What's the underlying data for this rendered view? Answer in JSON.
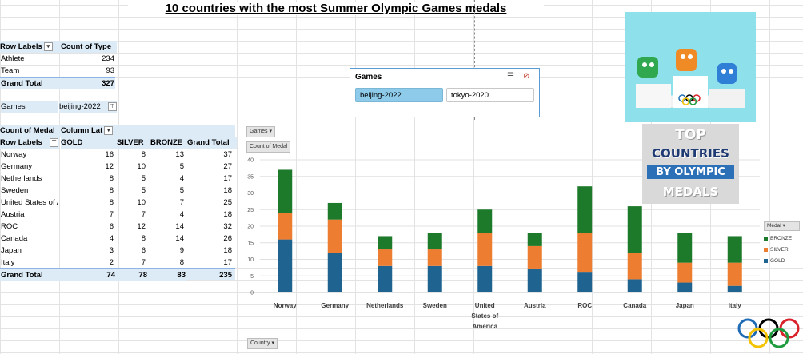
{
  "title": "10 countries with the most Summer Olympic Games medals",
  "pivot1": {
    "headers": [
      "Row Labels",
      "Count of Type"
    ],
    "rows": [
      {
        "label": "Athlete",
        "value": "234"
      },
      {
        "label": "Team",
        "value": "93"
      }
    ],
    "total": {
      "label": "Grand Total",
      "value": "327"
    }
  },
  "filter": {
    "label": "Games",
    "value": "beijing-2022"
  },
  "pivot2": {
    "corner": "Count of Medal",
    "column_labels": "Column Lat",
    "row_labels": "Row Labels",
    "columns": [
      "GOLD",
      "SILVER",
      "BRONZE",
      "Grand Total"
    ],
    "rows": [
      {
        "country": "Norway",
        "gold": "16",
        "silver": "8",
        "bronze": "13",
        "total": "37"
      },
      {
        "country": "Germany",
        "gold": "12",
        "silver": "10",
        "bronze": "5",
        "total": "27"
      },
      {
        "country": "Netherlands",
        "gold": "8",
        "silver": "5",
        "bronze": "4",
        "total": "17"
      },
      {
        "country": "Sweden",
        "gold": "8",
        "silver": "5",
        "bronze": "5",
        "total": "18"
      },
      {
        "country": "United States of A",
        "gold": "8",
        "silver": "10",
        "bronze": "7",
        "total": "25"
      },
      {
        "country": "Austria",
        "gold": "7",
        "silver": "7",
        "bronze": "4",
        "total": "18"
      },
      {
        "country": "ROC",
        "gold": "6",
        "silver": "12",
        "bronze": "14",
        "total": "32"
      },
      {
        "country": "Canada",
        "gold": "4",
        "silver": "8",
        "bronze": "14",
        "total": "26"
      },
      {
        "country": "Japan",
        "gold": "3",
        "silver": "6",
        "bronze": "9",
        "total": "18"
      },
      {
        "country": "Italy",
        "gold": "2",
        "silver": "7",
        "bronze": "8",
        "total": "17"
      }
    ],
    "total": {
      "label": "Grand Total",
      "gold": "74",
      "silver": "78",
      "bronze": "83",
      "total": "235"
    }
  },
  "slicer": {
    "title": "Games",
    "options": [
      "beijing-2022",
      "tokyo-2020"
    ],
    "selected": "beijing-2022"
  },
  "chart_buttons": {
    "games": "Games",
    "measure": "Count of Medal",
    "axis": "Country",
    "legend": "Medal"
  },
  "poster_text": [
    "TOP",
    "COUNTRIES",
    "BY OLYMPIC",
    "MEDALS"
  ],
  "colors": {
    "gold": "#1f6391",
    "silver": "#ed7d31",
    "bronze": "#1e7a2b",
    "header": "#ddebf7",
    "slicer_selected": "#8ecbea"
  },
  "icons": [
    "multi-select-icon",
    "clear-filter-icon",
    "dropdown-icon",
    "filter-icon",
    "olympic-rings-icon"
  ],
  "chart_data": {
    "type": "bar",
    "stacked": true,
    "categories": [
      "Norway",
      "Germany",
      "Netherlands",
      "Sweden",
      "United States of America",
      "Austria",
      "ROC",
      "Canada",
      "Japan",
      "Italy"
    ],
    "series": [
      {
        "name": "GOLD",
        "color": "#1f6391",
        "values": [
          16,
          12,
          8,
          8,
          8,
          7,
          6,
          4,
          3,
          2
        ]
      },
      {
        "name": "SILVER",
        "color": "#ed7d31",
        "values": [
          8,
          10,
          5,
          5,
          10,
          7,
          12,
          8,
          6,
          7
        ]
      },
      {
        "name": "BRONZE",
        "color": "#1e7a2b",
        "values": [
          13,
          5,
          4,
          5,
          7,
          4,
          14,
          14,
          9,
          8
        ]
      }
    ],
    "legend_order": [
      "BRONZE",
      "SILVER",
      "GOLD"
    ],
    "ylim": [
      0,
      40
    ],
    "yticks": [
      0,
      5,
      10,
      15,
      20,
      25,
      30,
      35,
      40
    ],
    "grid": true,
    "legend": "right"
  }
}
